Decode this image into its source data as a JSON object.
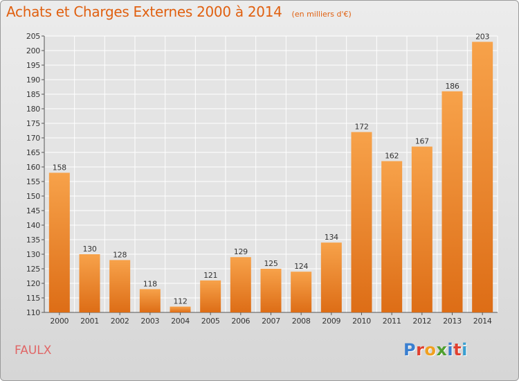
{
  "header": {
    "title": "Achats et Charges Externes 2000 à 2014",
    "subtitle": "(en milliers d'€)"
  },
  "footer": {
    "place": "FAULX",
    "logo_text": "Proxiti",
    "logo_colors": [
      "#3a7fd0",
      "#e04030",
      "#f0a020",
      "#50a030",
      "#3a7fd0",
      "#e04030",
      "#3a9fd0"
    ]
  },
  "colors": {
    "bar_light": "#f7a24a",
    "bar_dark": "#dd6d16",
    "title": "#e06010",
    "place": "#e06666"
  },
  "chart_data": {
    "type": "bar",
    "title": "Achats et Charges Externes 2000 à 2014",
    "subtitle": "(en milliers d'€)",
    "categories": [
      "2000",
      "2001",
      "2002",
      "2003",
      "2004",
      "2005",
      "2006",
      "2007",
      "2008",
      "2009",
      "2010",
      "2011",
      "2012",
      "2013",
      "2014"
    ],
    "values": [
      158,
      130,
      128,
      118,
      112,
      121,
      129,
      125,
      124,
      134,
      172,
      162,
      167,
      186,
      203
    ],
    "ylim": [
      110,
      205
    ],
    "yticks": [
      110,
      115,
      120,
      125,
      130,
      135,
      140,
      145,
      150,
      155,
      160,
      165,
      170,
      175,
      180,
      185,
      190,
      195,
      200,
      205
    ],
    "grid": true,
    "data_labels": true,
    "xlabel": "",
    "ylabel": ""
  }
}
